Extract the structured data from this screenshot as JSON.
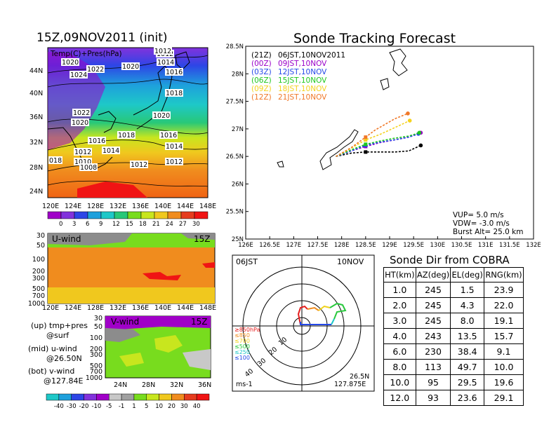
{
  "header": {
    "init_title": "15Z,09NOV2011 (init)",
    "track_title": "Sonde Tracking Forecast"
  },
  "colors": {
    "black": "#000000",
    "track_21z": "#000000",
    "track_00z": "#9a00c8",
    "track_03z": "#2448e8",
    "track_06z": "#1ec81e",
    "track_09z": "#f5d21e",
    "track_12z": "#f07828"
  },
  "surface_map": {
    "overlay_label": "Temp(C)+Pres(hPa)",
    "isobar_labels": [
      "1012",
      "1020",
      "1024",
      "1022",
      "1020",
      "1012",
      "1014",
      "1016",
      "1018",
      "1022",
      "1020",
      "1018",
      "1016",
      "1020",
      "1016",
      "1012",
      "1014",
      "1014",
      "1012",
      "1010",
      "1008",
      "1012",
      "1012",
      "018"
    ],
    "lat_labels": [
      "44N",
      "40N",
      "36N",
      "32N",
      "28N",
      "24N"
    ],
    "lon_labels": [
      "120E",
      "124E",
      "128E",
      "132E",
      "136E",
      "140E",
      "144E",
      "148E"
    ],
    "colorbar_labels": [
      "0",
      "3",
      "6",
      "9",
      "12",
      "15",
      "18",
      "21",
      "24",
      "27",
      "30"
    ],
    "colorbar_colors": [
      "#a000c8",
      "#8232dc",
      "#2d46e6",
      "#1ea0dc",
      "#1ec8c8",
      "#28c878",
      "#78dc1e",
      "#c8e61e",
      "#f0c81e",
      "#f08c1e",
      "#e63c1e",
      "#f01414"
    ]
  },
  "uwind": {
    "label": "U-wind",
    "time_label": "15Z",
    "p_labels": [
      "30",
      "50",
      "100",
      "200",
      "300",
      "500",
      "700",
      "1000"
    ],
    "lon_labels": [
      "120E",
      "124E",
      "128E",
      "132E",
      "136E",
      "140E",
      "144E",
      "148E"
    ]
  },
  "vwind": {
    "label": "V-wind",
    "time_label": "15Z",
    "p_labels": [
      "30",
      "50",
      "100",
      "200",
      "300",
      "500",
      "700",
      "1000"
    ],
    "lat_labels": [
      "24N",
      "28N",
      "32N",
      "36N"
    ]
  },
  "side_legend": {
    "up": "(up) tmp+pres",
    "up_sub": "@surf",
    "mid": "(mid) u-wind",
    "mid_sub": "@26.50N",
    "bot": "(bot) v-wind",
    "bot_sub": "@127.84E"
  },
  "bottom_colorbar": {
    "labels": [
      "-40",
      "-30",
      "-20",
      "-10",
      "-5",
      "-1",
      "1",
      "5",
      "10",
      "20",
      "30",
      "40"
    ],
    "colors": [
      "#1ec8c8",
      "#1ea0dc",
      "#2d46e6",
      "#8232dc",
      "#a000c8",
      "#c8c8c8",
      "#a0a0a0",
      "#78dc1e",
      "#c8e61e",
      "#f0c81e",
      "#f08c1e",
      "#e63c1e",
      "#f01414"
    ]
  },
  "track_chart": {
    "legend": [
      {
        "code": "(21Z)",
        "label": "06JST,10NOV2011",
        "color": "#000000"
      },
      {
        "code": "(00Z)",
        "label": "09JST,10NOV",
        "color": "#9a00c8"
      },
      {
        "code": "(03Z)",
        "label": "12JST,10NOV",
        "color": "#2448e8"
      },
      {
        "code": "(06Z)",
        "label": "15JST,10NOV",
        "color": "#1ec81e"
      },
      {
        "code": "(09Z)",
        "label": "18JST,10NOV",
        "color": "#f5d21e"
      },
      {
        "code": "(12Z)",
        "label": "21JST,10NOV",
        "color": "#f07828"
      }
    ],
    "x_ticks": [
      "126E",
      "126.5E",
      "127E",
      "127.5E",
      "128E",
      "128.5E",
      "129E",
      "129.5E",
      "130E",
      "130.5E",
      "131E",
      "131.5E",
      "132E"
    ],
    "y_ticks": [
      "25N",
      "25.5N",
      "26N",
      "26.5N",
      "27N",
      "27.5N",
      "28N",
      "28.5N"
    ],
    "vup": "VUP=  5.0 m/s",
    "vdw": "VDW= -3.0 m/s",
    "burst": "Burst Alt= 25.0 km"
  },
  "chart_data": {
    "type": "line",
    "xlabel": "",
    "ylabel": "",
    "xlim": [
      126,
      132
    ],
    "ylim": [
      25,
      28.5
    ],
    "series": [
      {
        "name": "(21Z) 06JST,10NOV2011",
        "x": [
          127.88,
          128.2,
          128.5,
          128.8,
          129.1,
          129.4,
          129.65
        ],
        "y": [
          26.5,
          26.56,
          26.58,
          26.58,
          26.58,
          26.6,
          26.7
        ]
      },
      {
        "name": "(00Z) 09JST,10NOV",
        "x": [
          127.88,
          128.2,
          128.5,
          128.8,
          129.1,
          129.4,
          129.65
        ],
        "y": [
          26.5,
          26.6,
          26.68,
          26.75,
          26.8,
          26.85,
          26.93
        ]
      },
      {
        "name": "(03Z) 12JST,10NOV",
        "x": [
          127.88,
          128.2,
          128.5,
          128.8,
          129.1,
          129.4,
          129.6
        ],
        "y": [
          26.5,
          26.6,
          26.7,
          26.76,
          26.8,
          26.85,
          26.91
        ]
      },
      {
        "name": "(06Z) 15JST,10NOV",
        "x": [
          127.88,
          128.2,
          128.5,
          128.8,
          129.1,
          129.4,
          129.62
        ],
        "y": [
          26.5,
          26.62,
          26.72,
          26.78,
          26.83,
          26.87,
          26.93
        ]
      },
      {
        "name": "(09Z) 18JST,10NOV",
        "x": [
          127.88,
          128.2,
          128.5,
          128.8,
          129.0,
          129.2,
          129.42
        ],
        "y": [
          26.5,
          26.65,
          26.8,
          26.9,
          26.98,
          27.06,
          27.15
        ]
      },
      {
        "name": "(12Z) 21JST,10NOV",
        "x": [
          127.88,
          128.2,
          128.5,
          128.7,
          128.9,
          129.1,
          129.38
        ],
        "y": [
          26.5,
          26.66,
          26.85,
          26.98,
          27.08,
          27.18,
          27.28
        ]
      }
    ]
  },
  "polar": {
    "time_label": "06JST",
    "date_label": "10NOV",
    "ring_labels": [
      "10",
      "20",
      "30",
      "40"
    ],
    "pressure_legend": [
      {
        "label": "≥850hPa",
        "color": "#e61e1e"
      },
      {
        "label": "≤850",
        "color": "#f08c1e"
      },
      {
        "label": "≤700",
        "color": "#f0d21e"
      },
      {
        "label": "≤500",
        "color": "#28c83c"
      },
      {
        "label": "≤250",
        "color": "#1ec8c8"
      },
      {
        "label": "≤100",
        "color": "#2448e8"
      }
    ],
    "unit": "ms-1",
    "lat": "26.5N",
    "lon": "127.875E"
  },
  "sonde_dir": {
    "title": "Sonde Dir from COBRA",
    "headers": [
      "HT(km)",
      "AZ(deg)",
      "EL(deg)",
      "RNG(km)"
    ],
    "rows": [
      [
        "1.0",
        "245",
        "1.5",
        "23.9"
      ],
      [
        "2.0",
        "245",
        "4.3",
        "22.0"
      ],
      [
        "3.0",
        "245",
        "8.0",
        "19.1"
      ],
      [
        "4.0",
        "243",
        "13.5",
        "15.7"
      ],
      [
        "6.0",
        "230",
        "38.4",
        "9.1"
      ],
      [
        "8.0",
        "113",
        "49.7",
        "10.0"
      ],
      [
        "10.0",
        "95",
        "29.5",
        "19.6"
      ],
      [
        "12.0",
        "93",
        "23.6",
        "29.1"
      ]
    ]
  }
}
